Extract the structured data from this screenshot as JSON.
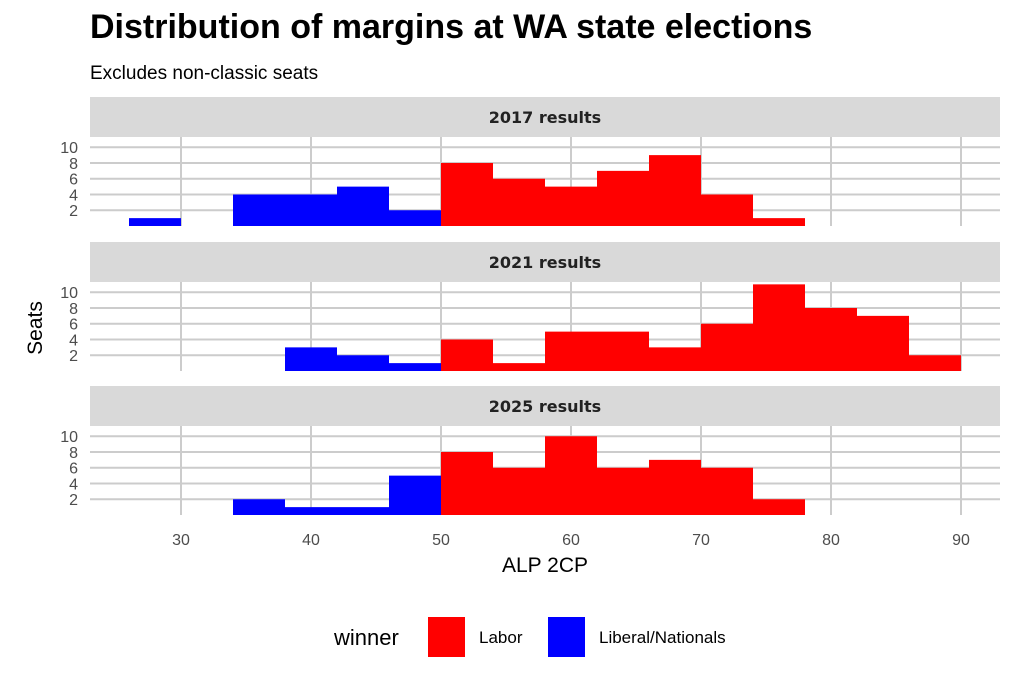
{
  "title": "Distribution of margins at WA state elections",
  "subtitle": "Excludes non-classic seats",
  "chart_data": {
    "type": "bar",
    "xlabel": "ALP 2CP",
    "ylabel": "Seats",
    "x_ticks": [
      30,
      40,
      50,
      60,
      70,
      80,
      90
    ],
    "y_ticks": [
      2,
      4,
      6,
      8,
      10
    ],
    "xlim": [
      23,
      93
    ],
    "ylim": [
      0,
      11.3
    ],
    "bin_width": 4,
    "grid": true,
    "legend": {
      "title": "winner",
      "position": "bottom",
      "entries": [
        {
          "name": "Labor",
          "color": "#ff0000"
        },
        {
          "name": "Liberal/Nationals",
          "color": "#0000ff"
        }
      ]
    },
    "panels": [
      {
        "label": "2017 results",
        "bins": [
          {
            "x0": 26,
            "x1": 30,
            "count": 1,
            "winner": "Liberal/Nationals"
          },
          {
            "x0": 34,
            "x1": 38,
            "count": 4,
            "winner": "Liberal/Nationals"
          },
          {
            "x0": 38,
            "x1": 42,
            "count": 4,
            "winner": "Liberal/Nationals"
          },
          {
            "x0": 42,
            "x1": 46,
            "count": 5,
            "winner": "Liberal/Nationals"
          },
          {
            "x0": 46,
            "x1": 50,
            "count": 2,
            "winner": "Liberal/Nationals"
          },
          {
            "x0": 50,
            "x1": 54,
            "count": 8,
            "winner": "Labor"
          },
          {
            "x0": 54,
            "x1": 58,
            "count": 6,
            "winner": "Labor"
          },
          {
            "x0": 58,
            "x1": 62,
            "count": 5,
            "winner": "Labor"
          },
          {
            "x0": 62,
            "x1": 66,
            "count": 7,
            "winner": "Labor"
          },
          {
            "x0": 66,
            "x1": 70,
            "count": 9,
            "winner": "Labor"
          },
          {
            "x0": 70,
            "x1": 74,
            "count": 4,
            "winner": "Labor"
          },
          {
            "x0": 74,
            "x1": 78,
            "count": 1,
            "winner": "Labor"
          }
        ]
      },
      {
        "label": "2021 results",
        "bins": [
          {
            "x0": 38,
            "x1": 42,
            "count": 3,
            "winner": "Liberal/Nationals"
          },
          {
            "x0": 42,
            "x1": 46,
            "count": 2,
            "winner": "Liberal/Nationals"
          },
          {
            "x0": 46,
            "x1": 50,
            "count": 1,
            "winner": "Liberal/Nationals"
          },
          {
            "x0": 50,
            "x1": 54,
            "count": 4,
            "winner": "Labor"
          },
          {
            "x0": 54,
            "x1": 58,
            "count": 1,
            "winner": "Labor"
          },
          {
            "x0": 58,
            "x1": 62,
            "count": 5,
            "winner": "Labor"
          },
          {
            "x0": 62,
            "x1": 66,
            "count": 5,
            "winner": "Labor"
          },
          {
            "x0": 66,
            "x1": 70,
            "count": 3,
            "winner": "Labor"
          },
          {
            "x0": 70,
            "x1": 74,
            "count": 6,
            "winner": "Labor"
          },
          {
            "x0": 74,
            "x1": 78,
            "count": 11,
            "winner": "Labor"
          },
          {
            "x0": 78,
            "x1": 82,
            "count": 8,
            "winner": "Labor"
          },
          {
            "x0": 82,
            "x1": 86,
            "count": 7,
            "winner": "Labor"
          },
          {
            "x0": 86,
            "x1": 90,
            "count": 2,
            "winner": "Labor"
          }
        ]
      },
      {
        "label": "2025 results",
        "bins": [
          {
            "x0": 34,
            "x1": 38,
            "count": 2,
            "winner": "Liberal/Nationals"
          },
          {
            "x0": 38,
            "x1": 42,
            "count": 1,
            "winner": "Liberal/Nationals"
          },
          {
            "x0": 42,
            "x1": 46,
            "count": 1,
            "winner": "Liberal/Nationals"
          },
          {
            "x0": 46,
            "x1": 50,
            "count": 5,
            "winner": "Liberal/Nationals"
          },
          {
            "x0": 50,
            "x1": 54,
            "count": 8,
            "winner": "Labor"
          },
          {
            "x0": 54,
            "x1": 58,
            "count": 6,
            "winner": "Labor"
          },
          {
            "x0": 58,
            "x1": 62,
            "count": 10,
            "winner": "Labor"
          },
          {
            "x0": 62,
            "x1": 66,
            "count": 6,
            "winner": "Labor"
          },
          {
            "x0": 66,
            "x1": 70,
            "count": 7,
            "winner": "Labor"
          },
          {
            "x0": 70,
            "x1": 74,
            "count": 6,
            "winner": "Labor"
          },
          {
            "x0": 74,
            "x1": 78,
            "count": 2,
            "winner": "Labor"
          }
        ]
      }
    ]
  }
}
